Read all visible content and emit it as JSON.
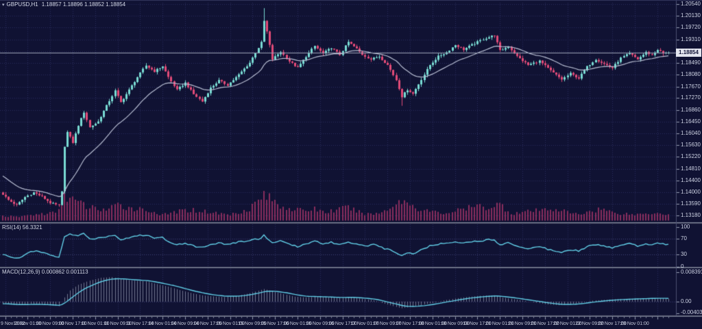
{
  "header": {
    "symbol_timeframe": "GBPUSD,H1",
    "ohlc": "1.18857 1.18896 1.18852 1.18854"
  },
  "chart_data": {
    "type": "candlestick",
    "symbol": "GBPUSD",
    "timeframe": "H1",
    "current_price": "1.18854",
    "price_axis": {
      "labels": [
        "1.20540",
        "1.20130",
        "1.19720",
        "1.19310",
        "1.18900",
        "1.18490",
        "1.18080",
        "1.17670",
        "1.17270",
        "1.16860",
        "1.16450",
        "1.16040",
        "1.15630",
        "1.15220",
        "1.14810",
        "1.14400",
        "1.14000",
        "1.13590",
        "1.13180"
      ],
      "label_hidden_behind_price_box": "1.18900",
      "top_value": 1.2054,
      "bottom_value": 1.1318,
      "step": 0.0041
    },
    "candles_approx": {
      "count": 238,
      "close_anchors": [
        [
          0,
          1.1392
        ],
        [
          2,
          1.1372
        ],
        [
          5,
          1.1354
        ],
        [
          8,
          1.1382
        ],
        [
          11,
          1.1398
        ],
        [
          14,
          1.1384
        ],
        [
          17,
          1.1362
        ],
        [
          20,
          1.1352
        ],
        [
          21,
          1.14
        ],
        [
          22,
          1.156
        ],
        [
          23,
          1.1608
        ],
        [
          25,
          1.1572
        ],
        [
          27,
          1.1632
        ],
        [
          29,
          1.1678
        ],
        [
          31,
          1.1625
        ],
        [
          34,
          1.1645
        ],
        [
          37,
          1.17
        ],
        [
          40,
          1.1752
        ],
        [
          42,
          1.1712
        ],
        [
          45,
          1.1755
        ],
        [
          48,
          1.18
        ],
        [
          51,
          1.184
        ],
        [
          54,
          1.182
        ],
        [
          57,
          1.1838
        ],
        [
          59,
          1.18
        ],
        [
          62,
          1.1755
        ],
        [
          65,
          1.178
        ],
        [
          68,
          1.174
        ],
        [
          71,
          1.1715
        ],
        [
          74,
          1.1762
        ],
        [
          77,
          1.1788
        ],
        [
          80,
          1.1772
        ],
        [
          84,
          1.1808
        ],
        [
          88,
          1.185
        ],
        [
          92,
          1.192
        ],
        [
          93,
          1.1995
        ],
        [
          94,
          1.1958
        ],
        [
          96,
          1.1862
        ],
        [
          99,
          1.1888
        ],
        [
          102,
          1.1855
        ],
        [
          105,
          1.1832
        ],
        [
          108,
          1.1872
        ],
        [
          111,
          1.1908
        ],
        [
          114,
          1.1882
        ],
        [
          117,
          1.1902
        ],
        [
          120,
          1.1878
        ],
        [
          123,
          1.1922
        ],
        [
          126,
          1.1898
        ],
        [
          128,
          1.1878
        ],
        [
          131,
          1.1862
        ],
        [
          134,
          1.1872
        ],
        [
          137,
          1.1842
        ],
        [
          140,
          1.179
        ],
        [
          142,
          1.1732
        ],
        [
          144,
          1.1756
        ],
        [
          146,
          1.1742
        ],
        [
          149,
          1.1792
        ],
        [
          152,
          1.1842
        ],
        [
          155,
          1.1872
        ],
        [
          158,
          1.1886
        ],
        [
          161,
          1.1912
        ],
        [
          164,
          1.1896
        ],
        [
          167,
          1.1912
        ],
        [
          171,
          1.1932
        ],
        [
          175,
          1.1946
        ],
        [
          177,
          1.1892
        ],
        [
          180,
          1.1906
        ],
        [
          183,
          1.1872
        ],
        [
          187,
          1.1842
        ],
        [
          191,
          1.1856
        ],
        [
          195,
          1.1822
        ],
        [
          199,
          1.1792
        ],
        [
          202,
          1.1812
        ],
        [
          205,
          1.1796
        ],
        [
          208,
          1.1836
        ],
        [
          211,
          1.1862
        ],
        [
          214,
          1.1846
        ],
        [
          217,
          1.1832
        ],
        [
          220,
          1.1866
        ],
        [
          223,
          1.1882
        ],
        [
          226,
          1.1862
        ],
        [
          229,
          1.1886
        ],
        [
          231,
          1.1876
        ],
        [
          233,
          1.1896
        ],
        [
          235,
          1.1882
        ],
        [
          237,
          1.18854
        ]
      ],
      "spike_high": {
        "index": 93,
        "price": 1.204
      },
      "spike_low": {
        "index": 142,
        "price": 1.17
      }
    },
    "moving_average": {
      "style": "smoothed overlay line",
      "period": 21,
      "seed": 1.1462
    },
    "volume": {
      "anchors": [
        [
          0,
          8
        ],
        [
          5,
          6
        ],
        [
          11,
          10
        ],
        [
          17,
          12
        ],
        [
          20,
          16
        ],
        [
          22,
          45
        ],
        [
          24,
          38
        ],
        [
          27,
          30
        ],
        [
          31,
          22
        ],
        [
          37,
          18
        ],
        [
          41,
          25
        ],
        [
          48,
          20
        ],
        [
          53,
          16
        ],
        [
          57,
          9
        ],
        [
          61,
          14
        ],
        [
          67,
          18
        ],
        [
          71,
          16
        ],
        [
          77,
          12
        ],
        [
          81,
          10
        ],
        [
          88,
          20
        ],
        [
          92,
          38
        ],
        [
          93,
          45
        ],
        [
          96,
          34
        ],
        [
          99,
          25
        ],
        [
          103,
          20
        ],
        [
          107,
          16
        ],
        [
          111,
          20
        ],
        [
          115,
          14
        ],
        [
          119,
          18
        ],
        [
          123,
          22
        ],
        [
          127,
          14
        ],
        [
          130,
          11
        ],
        [
          134,
          12
        ],
        [
          139,
          25
        ],
        [
          142,
          34
        ],
        [
          145,
          28
        ],
        [
          149,
          18
        ],
        [
          153,
          15
        ],
        [
          157,
          12
        ],
        [
          161,
          16
        ],
        [
          165,
          20
        ],
        [
          169,
          24
        ],
        [
          173,
          22
        ],
        [
          177,
          28
        ],
        [
          181,
          12
        ],
        [
          185,
          14
        ],
        [
          189,
          16
        ],
        [
          193,
          18
        ],
        [
          197,
          20
        ],
        [
          201,
          14
        ],
        [
          205,
          10
        ],
        [
          209,
          16
        ],
        [
          213,
          20
        ],
        [
          217,
          14
        ],
        [
          221,
          12
        ],
        [
          225,
          10
        ],
        [
          229,
          12
        ],
        [
          233,
          14
        ],
        [
          237,
          10
        ]
      ]
    },
    "rsi": {
      "label": "RSI(14) 56.3321",
      "current": 56.3321,
      "scale_labels": [
        "100",
        "70",
        "30",
        "0"
      ],
      "level_lines": [
        70,
        30
      ],
      "anchors": [
        [
          0,
          30
        ],
        [
          3,
          24
        ],
        [
          6,
          22
        ],
        [
          9,
          34
        ],
        [
          12,
          40
        ],
        [
          15,
          33
        ],
        [
          18,
          27
        ],
        [
          20,
          24
        ],
        [
          22,
          74
        ],
        [
          24,
          82
        ],
        [
          27,
          78
        ],
        [
          29,
          83
        ],
        [
          31,
          70
        ],
        [
          34,
          72
        ],
        [
          37,
          76
        ],
        [
          40,
          80
        ],
        [
          42,
          68
        ],
        [
          45,
          73
        ],
        [
          48,
          78
        ],
        [
          51,
          80
        ],
        [
          54,
          72
        ],
        [
          57,
          74
        ],
        [
          59,
          65
        ],
        [
          62,
          55
        ],
        [
          65,
          60
        ],
        [
          68,
          52
        ],
        [
          71,
          48
        ],
        [
          74,
          56
        ],
        [
          77,
          60
        ],
        [
          80,
          56
        ],
        [
          84,
          62
        ],
        [
          88,
          66
        ],
        [
          92,
          72
        ],
        [
          93,
          79
        ],
        [
          96,
          60
        ],
        [
          99,
          65
        ],
        [
          102,
          56
        ],
        [
          105,
          50
        ],
        [
          108,
          58
        ],
        [
          111,
          64
        ],
        [
          114,
          58
        ],
        [
          117,
          62
        ],
        [
          120,
          55
        ],
        [
          123,
          63
        ],
        [
          126,
          57
        ],
        [
          129,
          53
        ],
        [
          132,
          55
        ],
        [
          135,
          48
        ],
        [
          140,
          36
        ],
        [
          142,
          28
        ],
        [
          144,
          35
        ],
        [
          146,
          32
        ],
        [
          149,
          42
        ],
        [
          152,
          52
        ],
        [
          155,
          56
        ],
        [
          158,
          60
        ],
        [
          161,
          64
        ],
        [
          164,
          59
        ],
        [
          167,
          63
        ],
        [
          171,
          66
        ],
        [
          175,
          69
        ],
        [
          177,
          55
        ],
        [
          180,
          60
        ],
        [
          183,
          52
        ],
        [
          187,
          46
        ],
        [
          191,
          50
        ],
        [
          195,
          42
        ],
        [
          199,
          37
        ],
        [
          202,
          43
        ],
        [
          205,
          40
        ],
        [
          208,
          50
        ],
        [
          211,
          56
        ],
        [
          214,
          51
        ],
        [
          217,
          47
        ],
        [
          220,
          55
        ],
        [
          223,
          59
        ],
        [
          226,
          52
        ],
        [
          229,
          58
        ],
        [
          231,
          55
        ],
        [
          233,
          61
        ],
        [
          235,
          57
        ],
        [
          237,
          56.33
        ]
      ]
    },
    "macd": {
      "label": "MACD(12,26,9) 0.000862 0.001113",
      "current_macd": 0.000862,
      "current_signal": 0.001113,
      "scale_labels": [
        "0.008391",
        "0.00",
        "-0.004035"
      ],
      "anchors": [
        [
          0,
          -0.0006
        ],
        [
          5,
          -0.001
        ],
        [
          11,
          -0.0007
        ],
        [
          17,
          -0.001
        ],
        [
          20,
          -0.0013
        ],
        [
          22,
          0.0012
        ],
        [
          24,
          0.0032
        ],
        [
          27,
          0.0048
        ],
        [
          31,
          0.006
        ],
        [
          35,
          0.0068
        ],
        [
          39,
          0.007
        ],
        [
          43,
          0.0063
        ],
        [
          47,
          0.006
        ],
        [
          51,
          0.0058
        ],
        [
          55,
          0.005
        ],
        [
          59,
          0.0043
        ],
        [
          63,
          0.0033
        ],
        [
          67,
          0.0025
        ],
        [
          71,
          0.0018
        ],
        [
          75,
          0.0015
        ],
        [
          79,
          0.0013
        ],
        [
          84,
          0.0017
        ],
        [
          88,
          0.0024
        ],
        [
          93,
          0.0036
        ],
        [
          96,
          0.003
        ],
        [
          100,
          0.0022
        ],
        [
          104,
          0.0014
        ],
        [
          108,
          0.0012
        ],
        [
          112,
          0.0014
        ],
        [
          116,
          0.0012
        ],
        [
          120,
          0.0011
        ],
        [
          124,
          0.0013
        ],
        [
          128,
          0.0008
        ],
        [
          132,
          0.0004
        ],
        [
          136,
          -0.0006
        ],
        [
          140,
          -0.0015
        ],
        [
          142,
          -0.0019
        ],
        [
          146,
          -0.0014
        ],
        [
          150,
          -0.0008
        ],
        [
          154,
          -0.0002
        ],
        [
          158,
          0.0005
        ],
        [
          162,
          0.001
        ],
        [
          166,
          0.0014
        ],
        [
          171,
          0.0017
        ],
        [
          175,
          0.0018
        ],
        [
          178,
          0.0012
        ],
        [
          182,
          0.0007
        ],
        [
          186,
          0.0002
        ],
        [
          190,
          -0.0003
        ],
        [
          194,
          -0.0008
        ],
        [
          198,
          -0.001
        ],
        [
          202,
          -0.0008
        ],
        [
          206,
          -0.0003
        ],
        [
          210,
          0.0003
        ],
        [
          214,
          0.0005
        ],
        [
          218,
          0.0007
        ],
        [
          222,
          0.0008
        ],
        [
          226,
          0.0009
        ],
        [
          230,
          0.001
        ],
        [
          234,
          0.001
        ],
        [
          237,
          0.00086
        ]
      ]
    },
    "time_axis": {
      "labels": [
        {
          "text": "9 Nov 2022",
          "candle": 1
        },
        {
          "text": "10 Nov 01:00",
          "candle": 9
        },
        {
          "text": "10 Nov 09:00",
          "candle": 17
        },
        {
          "text": "10 Nov 17:00",
          "candle": 25
        },
        {
          "text": "11 Nov 01:00",
          "candle": 33
        },
        {
          "text": "11 Nov 09:00",
          "candle": 41
        },
        {
          "text": "11 Nov 17:00",
          "candle": 49
        },
        {
          "text": "14 Nov 01:00",
          "candle": 57
        },
        {
          "text": "14 Nov 09:00",
          "candle": 65
        },
        {
          "text": "14 Nov 17:00",
          "candle": 73
        },
        {
          "text": "15 Nov 01:00",
          "candle": 81
        },
        {
          "text": "15 Nov 09:00",
          "candle": 89
        },
        {
          "text": "15 Nov 17:00",
          "candle": 97
        },
        {
          "text": "16 Nov 01:00",
          "candle": 105
        },
        {
          "text": "16 Nov 09:00",
          "candle": 113
        },
        {
          "text": "16 Nov 17:00",
          "candle": 121
        },
        {
          "text": "17 Nov 01:00",
          "candle": 129
        },
        {
          "text": "17 Nov 09:00",
          "candle": 137
        },
        {
          "text": "17 Nov 17:00",
          "candle": 145
        },
        {
          "text": "18 Nov 01:00",
          "candle": 153
        },
        {
          "text": "18 Nov 09:00",
          "candle": 161
        },
        {
          "text": "18 Nov 17:00",
          "candle": 169
        },
        {
          "text": "21 Nov 01:00",
          "candle": 177
        },
        {
          "text": "21 Nov 09:00",
          "candle": 185
        },
        {
          "text": "21 Nov 17:00",
          "candle": 193
        },
        {
          "text": "22 Nov 01:00",
          "candle": 201
        },
        {
          "text": "22 Nov 09:00",
          "candle": 209
        },
        {
          "text": "22 Nov 17:00",
          "candle": 217
        },
        {
          "text": "23 Nov 01:00",
          "candle": 225
        }
      ],
      "extra_grid_candles": [
        233
      ]
    }
  },
  "colors": {
    "background": "#101233",
    "top_edge": "#343860",
    "grid": "#2b2f5e",
    "level_line": "#43477c",
    "bull": "#79dcd4",
    "bear": "#e24b78",
    "ma_line": "#b9bfd4",
    "indicator_line": "#62d0e8",
    "volume": "#8a2d5e",
    "histogram": "#c3c8da",
    "axis_text": "#ced3e4",
    "separator": "#878da0",
    "axis_line": "#4b4f72",
    "tick": "#98a0b4",
    "price_line": "#9fa6ba",
    "price_box_bg": "#e2e4ee",
    "price_box_text": "#131538"
  }
}
